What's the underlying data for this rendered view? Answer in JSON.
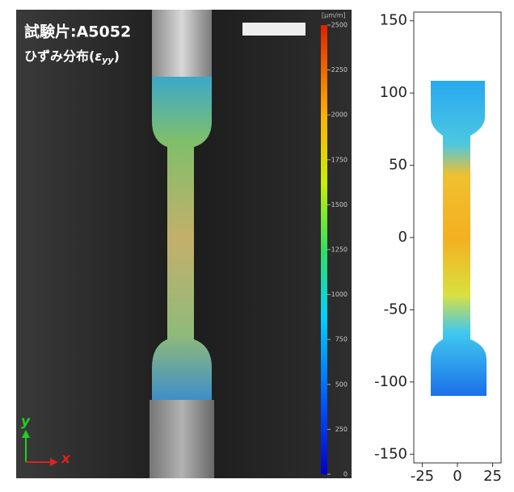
{
  "photo": {
    "title": "試験片:A5052",
    "subtitle": "ひずみ分布(",
    "subtitle_symbol": "ε",
    "subtitle_subscript": "yy",
    "subtitle_end": ")",
    "axis_y": "y",
    "axis_x": "x",
    "colorbar": {
      "unit": "[μm/m]",
      "lim": [
        0,
        2500
      ],
      "ticks": [
        0,
        250,
        500,
        750,
        1000,
        1250,
        1500,
        1750,
        2000,
        2250,
        2500
      ]
    }
  },
  "chart_data": {
    "type": "strain-map",
    "xlim": [
      -31,
      31
    ],
    "ylim": [
      -156,
      156
    ],
    "xticks": [
      -25,
      0,
      25
    ],
    "yticks": [
      -150,
      -100,
      -50,
      0,
      50,
      100,
      150
    ]
  }
}
